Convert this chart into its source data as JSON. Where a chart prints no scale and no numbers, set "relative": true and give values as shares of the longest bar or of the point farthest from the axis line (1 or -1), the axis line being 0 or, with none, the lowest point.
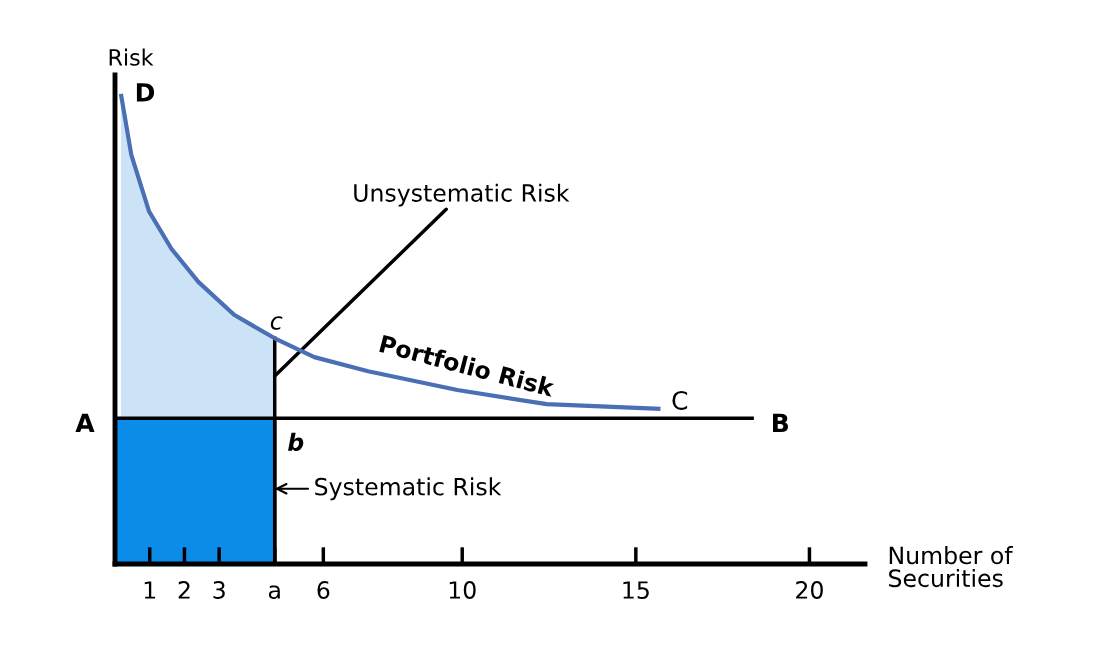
{
  "chart_data": {
    "type": "line",
    "relative": true,
    "xlabel": "Number of\nSecurities",
    "ylabel": "Risk",
    "xlim": [
      0,
      21.6
    ],
    "xticks": [
      1,
      2,
      3,
      {
        "value": 4.6,
        "label": "a"
      },
      6,
      10,
      15,
      20
    ],
    "grid": false,
    "legend": false,
    "marker": "none",
    "series": [
      {
        "type": "area",
        "color": "#cce3f7",
        "x": [
          0.17,
          0.47,
          0.98,
          1.63,
          2.4,
          3.43,
          4.6
        ],
        "values": [
          1.0,
          0.87,
          0.75,
          0.67,
          0.6,
          0.53,
          0.48
        ]
      },
      {
        "type": "area",
        "color": "#0a8ce8",
        "x": [
          0,
          4.6
        ],
        "values": [
          0.31,
          0.31
        ]
      },
      {
        "type": "line",
        "color": "#000000",
        "x": [
          0,
          18.4
        ],
        "values": [
          0.31,
          0.31
        ]
      },
      {
        "name": "Portfolio Risk",
        "color": "#4a6fb5",
        "x": [
          0.17,
          0.47,
          0.98,
          1.63,
          2.4,
          3.43,
          4.6,
          5.74,
          7.29,
          9.86,
          12.43,
          15.71
        ],
        "values": [
          1.0,
          0.87,
          0.75,
          0.67,
          0.6,
          0.53,
          0.48,
          0.44,
          0.41,
          0.37,
          0.34,
          0.33
        ]
      }
    ],
    "annotations": [
      {
        "text": "Unsystematic Risk",
        "x": 4.6,
        "y": 0.4
      },
      {
        "text": "Systematic Risk",
        "x": 4.6,
        "y": 0.16
      },
      "D",
      "A",
      "B",
      "C",
      "c",
      "b"
    ]
  }
}
